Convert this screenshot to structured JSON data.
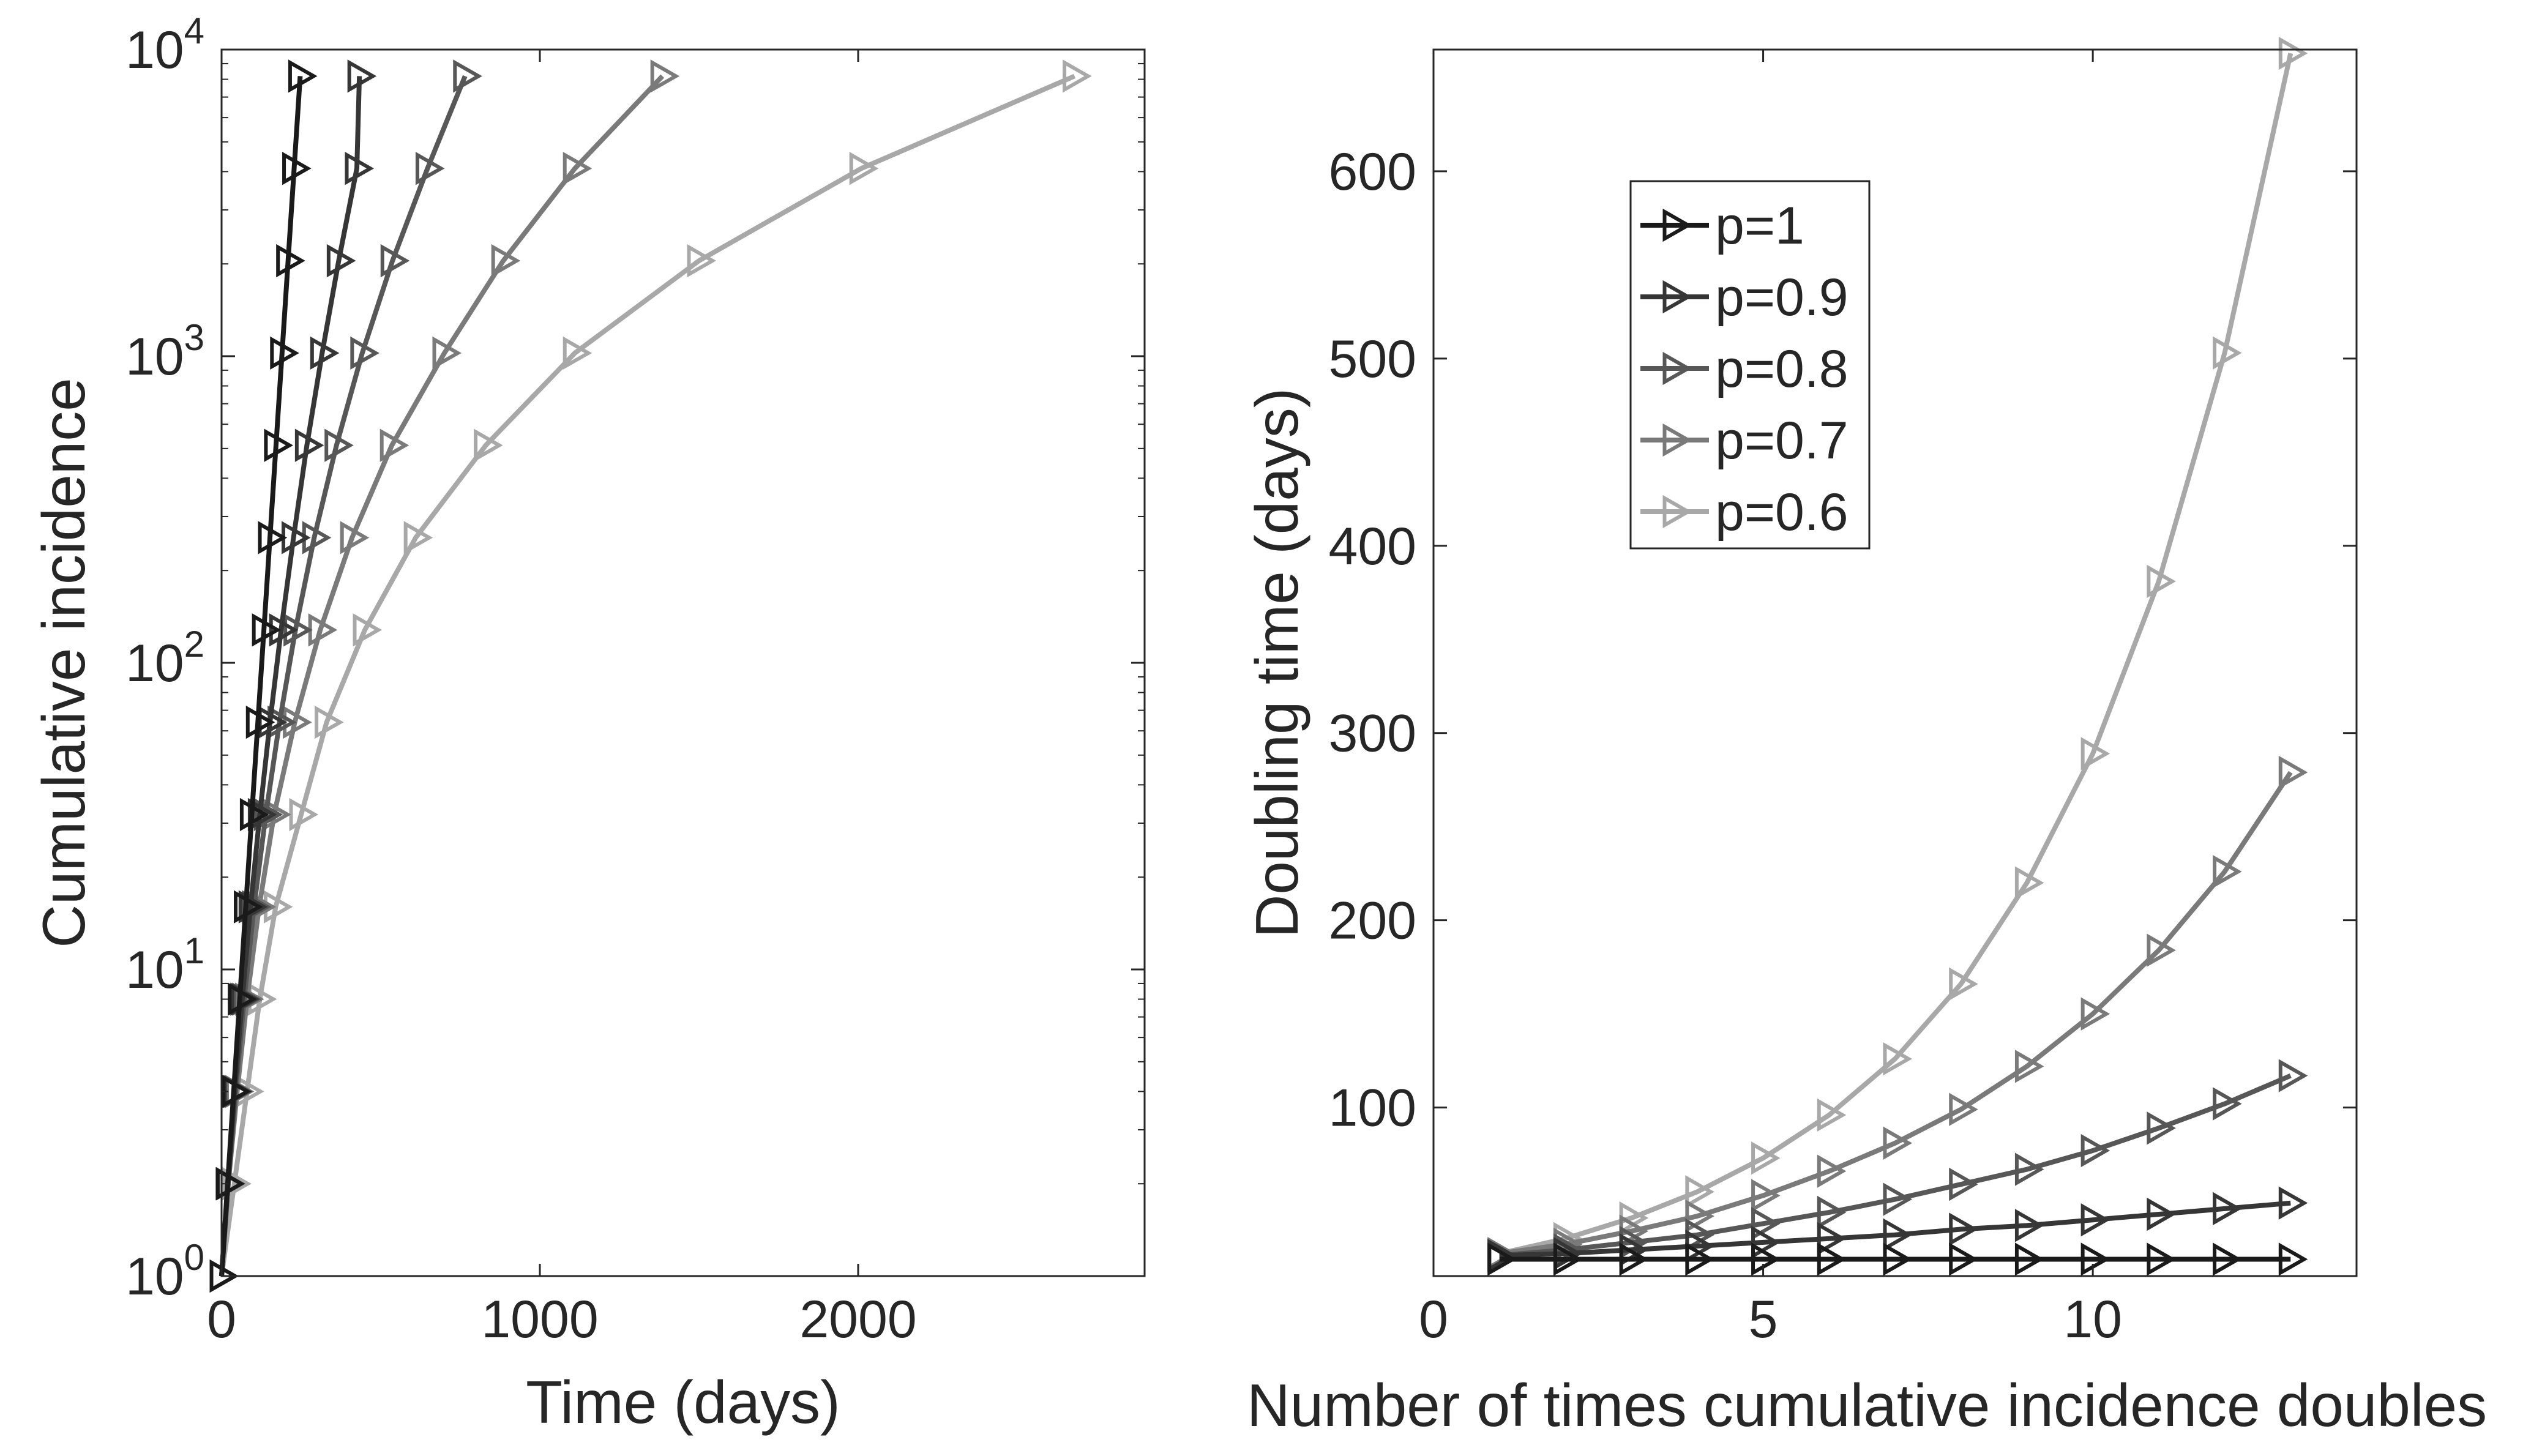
{
  "chart_data": [
    {
      "type": "line",
      "xlabel": "Time (days)",
      "ylabel": "Cumulative incidence",
      "xlim": [
        0,
        2900
      ],
      "ylim": [
        1,
        10000
      ],
      "yscale": "log",
      "x_ticks": [
        0,
        1000,
        2000
      ],
      "x_tick_labels": [
        "0",
        "1000",
        "2000"
      ],
      "y_ticks": [
        1,
        10,
        100,
        1000,
        10000
      ],
      "y_tick_labels": [
        {
          "base": "10",
          "exp": "0"
        },
        {
          "base": "10",
          "exp": "1"
        },
        {
          "base": "10",
          "exp": "2"
        },
        {
          "base": "10",
          "exp": "3"
        },
        {
          "base": "10",
          "exp": "4"
        }
      ],
      "grid": false,
      "legend": "none",
      "marker": "right-pointing triangle",
      "series": [
        {
          "name": "p=1",
          "color": "#1a1a1a",
          "x": [
            0,
            19,
            38,
            57,
            76,
            95,
            114,
            133,
            152,
            171,
            190,
            209,
            228,
            247
          ],
          "y": [
            1,
            2,
            4,
            8,
            16,
            32,
            64,
            128,
            256,
            512,
            1024,
            2048,
            4096,
            8192
          ]
        },
        {
          "name": "p=0.9",
          "color": "#363636",
          "x": [
            0,
            20,
            41,
            65,
            91,
            120,
            152,
            187,
            226,
            268,
            316,
            368,
            425,
            433
          ],
          "y": [
            1,
            2,
            4,
            8,
            16,
            32,
            64,
            128,
            256,
            512,
            1024,
            2048,
            4096,
            8192
          ]
        },
        {
          "name": "p=0.8",
          "color": "#575757",
          "x": [
            0,
            21,
            44,
            71,
            102,
            139,
            182,
            232,
            291,
            361,
            442,
            537,
            647,
            765
          ],
          "y": [
            1,
            2,
            4,
            8,
            16,
            32,
            64,
            128,
            256,
            512,
            1024,
            2048,
            4096,
            8192
          ]
        },
        {
          "name": "p=0.7",
          "color": "#7a7a7a",
          "x": [
            0,
            21,
            49,
            80,
            118,
            165,
            230,
            310,
            410,
            535,
            700,
            885,
            1110,
            1385
          ],
          "y": [
            1,
            2,
            4,
            8,
            16,
            32,
            64,
            128,
            256,
            512,
            1024,
            2048,
            4096,
            8192
          ]
        },
        {
          "name": "p=0.6",
          "color": "#a8a8a8",
          "x": [
            0,
            40,
            80,
            120,
            170,
            250,
            330,
            450,
            610,
            830,
            1110,
            1500,
            2010,
            2680
          ],
          "y": [
            1,
            2,
            4,
            8,
            16,
            32,
            64,
            128,
            256,
            512,
            1024,
            2048,
            4096,
            8192
          ]
        }
      ]
    },
    {
      "type": "line",
      "xlabel": "Number of times cumulative incidence doubles",
      "ylabel": "Doubling time (days)",
      "xlim": [
        0,
        14
      ],
      "ylim": [
        10,
        665
      ],
      "x_ticks": [
        0,
        5,
        10
      ],
      "x_tick_labels": [
        "0",
        "5",
        "10"
      ],
      "y_ticks": [
        100,
        200,
        300,
        400,
        500,
        600
      ],
      "y_tick_labels": [
        "100",
        "200",
        "300",
        "400",
        "500",
        "600"
      ],
      "grid": false,
      "legend": "upper-left",
      "marker": "right-pointing triangle",
      "series": [
        {
          "name": "p=1",
          "color": "#1a1a1a",
          "x": [
            1,
            2,
            3,
            4,
            5,
            6,
            7,
            8,
            9,
            10,
            11,
            12,
            13
          ],
          "y": [
            19,
            19,
            19,
            19,
            19,
            19,
            19,
            19,
            19,
            19,
            19,
            19,
            19
          ]
        },
        {
          "name": "p=0.9",
          "color": "#363636",
          "x": [
            1,
            2,
            3,
            4,
            5,
            6,
            7,
            8,
            9,
            10,
            11,
            12,
            13
          ],
          "y": [
            21,
            22,
            24,
            26,
            28,
            30,
            32,
            35,
            37,
            40,
            43,
            46,
            49
          ]
        },
        {
          "name": "p=0.8",
          "color": "#575757",
          "x": [
            1,
            2,
            3,
            4,
            5,
            6,
            7,
            8,
            9,
            10,
            11,
            12,
            13
          ],
          "y": [
            21,
            24,
            28,
            32,
            38,
            44,
            51,
            59,
            67,
            77,
            89,
            102,
            117
          ]
        },
        {
          "name": "p=0.7",
          "color": "#7a7a7a",
          "x": [
            1,
            2,
            3,
            4,
            5,
            6,
            7,
            8,
            9,
            10,
            11,
            12,
            13
          ],
          "y": [
            22,
            27,
            34,
            42,
            53,
            66,
            81,
            99,
            122,
            150,
            184,
            226,
            279
          ]
        },
        {
          "name": "p=0.6",
          "color": "#a8a8a8",
          "x": [
            1,
            2,
            3,
            4,
            5,
            6,
            7,
            8,
            9,
            10,
            11,
            12,
            13
          ],
          "y": [
            22,
            30,
            41,
            55,
            73,
            96,
            126,
            166,
            220,
            289,
            381,
            503,
            663
          ]
        }
      ]
    }
  ]
}
